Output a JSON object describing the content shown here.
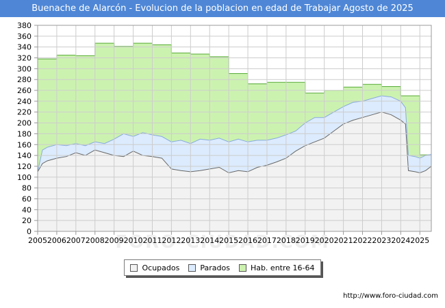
{
  "title": "Buenache de Alarcón - Evolucion de la poblacion en edad de Trabajar Agosto de 2025",
  "source": "http://www.foro-ciudad.com",
  "watermark": "FORO-CIUDAD.COM",
  "colors": {
    "title_bg": "#4f87d6",
    "ocupados_fill": "#f2f2f2",
    "ocupados_line": "#666666",
    "parados_fill": "#dcebfd",
    "parados_line": "#88aadd",
    "hab_fill": "#ccf2b0",
    "hab_line": "#55aa33"
  },
  "legend": {
    "ocupados": "Ocupados",
    "parados": "Parados",
    "hab": "Hab. entre 16-64"
  },
  "chart_data": {
    "type": "area",
    "title": "Buenache de Alarcón - Evolucion de la poblacion en edad de Trabajar Agosto de 2025",
    "xlabel": "",
    "ylabel": "",
    "xlim": [
      2005,
      2025.6
    ],
    "ylim": [
      0,
      380
    ],
    "y_ticks": [
      0,
      20,
      40,
      60,
      80,
      100,
      120,
      140,
      160,
      180,
      200,
      220,
      240,
      260,
      280,
      300,
      320,
      340,
      360,
      380
    ],
    "x_ticks": [
      "2005",
      "2006",
      "2007",
      "2008",
      "2009",
      "2010",
      "2011",
      "2012",
      "2013",
      "2014",
      "2015",
      "2016",
      "2017",
      "2018",
      "2019",
      "2020",
      "2021",
      "2022",
      "2023",
      "2024",
      "2025"
    ],
    "grid": true,
    "legend_position": "bottom",
    "series": [
      {
        "name": "Hab. entre 16-64",
        "step": true,
        "points": [
          [
            2005,
            318
          ],
          [
            2006,
            325
          ],
          [
            2007,
            324
          ],
          [
            2008,
            347
          ],
          [
            2009,
            341
          ],
          [
            2010,
            347
          ],
          [
            2011,
            344
          ],
          [
            2012,
            329
          ],
          [
            2013,
            327
          ],
          [
            2014,
            322
          ],
          [
            2015,
            291
          ],
          [
            2016,
            272
          ],
          [
            2017,
            275
          ],
          [
            2018,
            275
          ],
          [
            2019,
            255
          ],
          [
            2020,
            260
          ],
          [
            2021,
            266
          ],
          [
            2022,
            271
          ],
          [
            2023,
            267
          ],
          [
            2024,
            250
          ],
          [
            2025,
            141
          ]
        ]
      },
      {
        "name": "Parados",
        "points": [
          [
            2005,
            110
          ],
          [
            2005.25,
            150
          ],
          [
            2005.5,
            155
          ],
          [
            2006,
            160
          ],
          [
            2006.5,
            158
          ],
          [
            2007,
            162
          ],
          [
            2007.5,
            158
          ],
          [
            2008,
            165
          ],
          [
            2008.5,
            162
          ],
          [
            2009,
            170
          ],
          [
            2009.5,
            180
          ],
          [
            2010,
            175
          ],
          [
            2010.5,
            182
          ],
          [
            2011,
            178
          ],
          [
            2011.5,
            175
          ],
          [
            2012,
            165
          ],
          [
            2012.5,
            168
          ],
          [
            2013,
            162
          ],
          [
            2013.5,
            170
          ],
          [
            2014,
            168
          ],
          [
            2014.5,
            172
          ],
          [
            2015,
            165
          ],
          [
            2015.5,
            170
          ],
          [
            2016,
            165
          ],
          [
            2016.5,
            168
          ],
          [
            2017,
            168
          ],
          [
            2017.5,
            172
          ],
          [
            2018,
            178
          ],
          [
            2018.5,
            185
          ],
          [
            2019,
            200
          ],
          [
            2019.5,
            210
          ],
          [
            2020,
            210
          ],
          [
            2020.5,
            220
          ],
          [
            2021,
            230
          ],
          [
            2021.5,
            238
          ],
          [
            2022,
            240
          ],
          [
            2022.5,
            245
          ],
          [
            2023,
            250
          ],
          [
            2023.5,
            248
          ],
          [
            2024,
            240
          ],
          [
            2024.25,
            228
          ],
          [
            2024.4,
            140
          ],
          [
            2024.75,
            138
          ],
          [
            2025,
            135
          ],
          [
            2025.3,
            140
          ],
          [
            2025.6,
            142
          ]
        ]
      },
      {
        "name": "Ocupados",
        "points": [
          [
            2005,
            110
          ],
          [
            2005.25,
            125
          ],
          [
            2005.5,
            130
          ],
          [
            2006,
            135
          ],
          [
            2006.5,
            138
          ],
          [
            2007,
            145
          ],
          [
            2007.5,
            140
          ],
          [
            2008,
            150
          ],
          [
            2008.5,
            145
          ],
          [
            2009,
            140
          ],
          [
            2009.5,
            138
          ],
          [
            2010,
            148
          ],
          [
            2010.5,
            140
          ],
          [
            2011,
            138
          ],
          [
            2011.5,
            135
          ],
          [
            2012,
            115
          ],
          [
            2012.5,
            112
          ],
          [
            2013,
            110
          ],
          [
            2013.5,
            112
          ],
          [
            2014,
            115
          ],
          [
            2014.5,
            118
          ],
          [
            2015,
            108
          ],
          [
            2015.5,
            112
          ],
          [
            2016,
            110
          ],
          [
            2016.5,
            118
          ],
          [
            2017,
            122
          ],
          [
            2017.5,
            128
          ],
          [
            2018,
            135
          ],
          [
            2018.5,
            148
          ],
          [
            2019,
            158
          ],
          [
            2019.5,
            165
          ],
          [
            2020,
            172
          ],
          [
            2020.5,
            185
          ],
          [
            2021,
            198
          ],
          [
            2021.5,
            205
          ],
          [
            2022,
            210
          ],
          [
            2022.5,
            215
          ],
          [
            2023,
            220
          ],
          [
            2023.5,
            215
          ],
          [
            2024,
            205
          ],
          [
            2024.25,
            198
          ],
          [
            2024.4,
            112
          ],
          [
            2024.75,
            110
          ],
          [
            2025,
            108
          ],
          [
            2025.3,
            112
          ],
          [
            2025.6,
            120
          ]
        ]
      }
    ]
  }
}
